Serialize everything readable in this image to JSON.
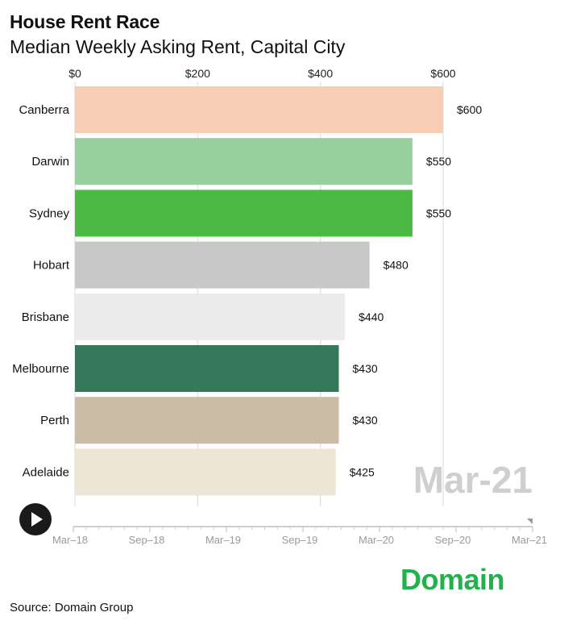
{
  "header": {
    "title": "House Rent Race",
    "subtitle": "Median Weekly Asking Rent, Capital City"
  },
  "controls": {
    "play_icon": "play-icon",
    "timeline_labels": [
      "Mar–18",
      "Sep–18",
      "Mar–19",
      "Sep–19",
      "Mar–20",
      "Sep–20",
      "Mar–21"
    ],
    "current_period": "Mar-21",
    "progress": 1.0
  },
  "footer": {
    "source": "Source: Domain Group",
    "brand": "Domain",
    "brand_color": "#22b14c"
  },
  "chart_data": {
    "type": "bar",
    "orientation": "horizontal",
    "categories": [
      "Canberra",
      "Darwin",
      "Sydney",
      "Hobart",
      "Brisbane",
      "Melbourne",
      "Perth",
      "Adelaide"
    ],
    "values": [
      600,
      550,
      550,
      480,
      440,
      430,
      430,
      425
    ],
    "value_labels": [
      "$600",
      "$550",
      "$550",
      "$480",
      "$440",
      "$430",
      "$430",
      "$425"
    ],
    "colors": [
      "#f7cdb4",
      "#98cf9f",
      "#4cb944",
      "#c8c8c8",
      "#ebebeb",
      "#36785a",
      "#cbbca6",
      "#ede6d5"
    ],
    "xlim": [
      0,
      600
    ],
    "x_ticks": [
      0,
      200,
      400,
      600
    ],
    "x_tick_labels": [
      "$0",
      "$200",
      "$400",
      "$600"
    ],
    "grid": true,
    "period_label": "Mar-21"
  }
}
